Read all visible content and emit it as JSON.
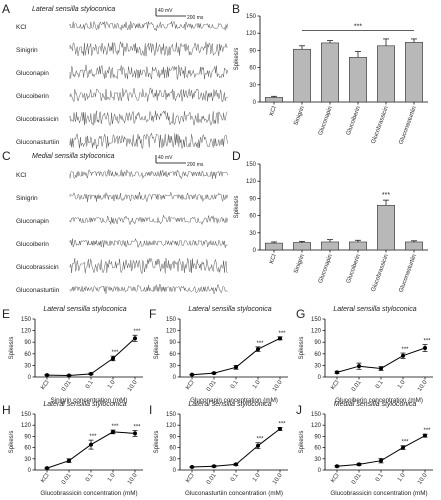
{
  "figure": {
    "panel_labels": {
      "A": "A",
      "B": "B",
      "C": "C",
      "D": "D",
      "E": "E",
      "F": "F",
      "G": "G",
      "H": "H",
      "I": "I",
      "J": "J"
    }
  },
  "chart_data": [
    {
      "id": "A",
      "type": "trace",
      "title": "Lateral sensilla styloconica",
      "scale_bar": {
        "voltage": "40 mV",
        "time": "200 ms"
      },
      "traces": [
        {
          "label": "KCl",
          "activity": 0.15
        },
        {
          "label": "Sinigrin",
          "activity": 0.7
        },
        {
          "label": "Gluconapin",
          "activity": 0.75
        },
        {
          "label": "Glucoiberin",
          "activity": 0.65
        },
        {
          "label": "Glucobrassicin",
          "activity": 0.75
        },
        {
          "label": "Gluconasturtiin",
          "activity": 0.85
        }
      ]
    },
    {
      "id": "B",
      "type": "bar",
      "ylabel": "Spikes/s",
      "ylim": [
        0,
        150
      ],
      "yticks": [
        0,
        30,
        60,
        90,
        120,
        150
      ],
      "categories": [
        "KCl",
        "Sinigrin",
        "Gluconapin",
        "Glucoiberin",
        "Glucobrassicin",
        "Gluconasturtiin"
      ],
      "values": [
        8,
        92,
        103,
        78,
        98,
        104
      ],
      "errors": [
        2,
        6,
        4,
        10,
        12,
        6
      ],
      "annotations": [
        {
          "text": "***"
        }
      ]
    },
    {
      "id": "C",
      "type": "trace",
      "title": "Medial sensilla styloconica",
      "scale_bar": {
        "voltage": "40 mV",
        "time": "200 ms"
      },
      "traces": [
        {
          "label": "KCl",
          "activity": 0.1
        },
        {
          "label": "Sinigrin",
          "activity": 0.1
        },
        {
          "label": "Gluconapin",
          "activity": 0.12
        },
        {
          "label": "Glucoiberin",
          "activity": 0.1
        },
        {
          "label": "Glucobrassicin",
          "activity": 0.85
        },
        {
          "label": "Gluconasturtiin",
          "activity": 0.1
        }
      ]
    },
    {
      "id": "D",
      "type": "bar",
      "ylabel": "Spikes/s",
      "ylim": [
        0,
        150
      ],
      "yticks": [
        0,
        30,
        60,
        90,
        120,
        150
      ],
      "categories": [
        "KCl",
        "Sinigrin",
        "Gluconapin",
        "Glucoiberin",
        "Glucobrassicin",
        "Gluconasturtiin"
      ],
      "values": [
        12,
        13,
        14,
        14,
        78,
        14
      ],
      "errors": [
        2,
        2,
        4,
        3,
        9,
        2
      ],
      "annotations": [
        {
          "text": "***",
          "category": "Glucobrassicin"
        }
      ]
    },
    {
      "id": "E",
      "type": "line",
      "title": "Lateral sensilla styloconica",
      "xlabel": "Sinigrin concentration (mM)",
      "ylabel": "Spikes/s",
      "categories": [
        "KCl",
        "0.01",
        "0.1",
        "1.0",
        "10.0"
      ],
      "values": [
        5,
        4,
        8,
        48,
        100
      ],
      "errors": [
        1,
        1,
        2,
        6,
        8
      ],
      "significance": [
        "",
        "",
        "",
        "***",
        "***"
      ],
      "ylim": [
        0,
        150
      ],
      "yticks": [
        0,
        30,
        60,
        90,
        120,
        150
      ]
    },
    {
      "id": "F",
      "type": "line",
      "title": "Lateral sensilla styloconica",
      "xlabel": "Gluconapin concentration (mM)",
      "ylabel": "Spikes/s",
      "categories": [
        "KCl",
        "0.01",
        "0.1",
        "1.0",
        "10.0"
      ],
      "values": [
        6,
        10,
        25,
        72,
        100
      ],
      "errors": [
        1,
        2,
        5,
        6,
        4
      ],
      "significance": [
        "",
        "",
        "",
        "***",
        "***"
      ],
      "ylim": [
        0,
        150
      ],
      "yticks": [
        0,
        30,
        60,
        90,
        120,
        150
      ]
    },
    {
      "id": "G",
      "type": "line",
      "title": "Lateral sensilla styloconica",
      "xlabel": "Glucoiberin concentration (mM)",
      "ylabel": "Spikes/s",
      "categories": [
        "KCl",
        "0.01",
        "0.1",
        "1.0",
        "10.0"
      ],
      "values": [
        12,
        28,
        22,
        55,
        75
      ],
      "errors": [
        3,
        8,
        5,
        7,
        9
      ],
      "significance": [
        "",
        "",
        "",
        "***",
        "***"
      ],
      "ylim": [
        0,
        150
      ],
      "yticks": [
        0,
        30,
        60,
        90,
        120,
        150
      ]
    },
    {
      "id": "H",
      "type": "line",
      "title": "Lateral sensilla styloconica",
      "xlabel": "Glucobrassicin concentration (mM)",
      "ylabel": "Spikes/s",
      "categories": [
        "KCl",
        "0.01",
        "0.1",
        "1.0",
        "10.0"
      ],
      "values": [
        5,
        25,
        68,
        102,
        98
      ],
      "errors": [
        1,
        5,
        12,
        5,
        8
      ],
      "significance": [
        "",
        "",
        "***",
        "***",
        "***"
      ],
      "ylim": [
        0,
        150
      ],
      "yticks": [
        0,
        30,
        60,
        90,
        120,
        150
      ]
    },
    {
      "id": "I",
      "type": "line",
      "title": "Lateral sensilla styloconica",
      "xlabel": "Gluconasturtiin concentration (mM)",
      "ylabel": "Spikes/s",
      "categories": [
        "KCl",
        "0.01",
        "0.1",
        "1.0",
        "10.0"
      ],
      "values": [
        8,
        10,
        15,
        65,
        110
      ],
      "errors": [
        1,
        2,
        3,
        8,
        4
      ],
      "significance": [
        "",
        "",
        "",
        "***",
        "***"
      ],
      "ylim": [
        0,
        150
      ],
      "yticks": [
        0,
        30,
        60,
        90,
        120,
        150
      ]
    },
    {
      "id": "J",
      "type": "line",
      "title": "Medial sensilla styloconica",
      "xlabel": "Glucobrassicin concentration (mM)",
      "ylabel": "Spikes/s",
      "categories": [
        "KCl",
        "0.01",
        "0.1",
        "1.0",
        "10.0"
      ],
      "values": [
        10,
        15,
        25,
        60,
        92
      ],
      "errors": [
        2,
        3,
        6,
        5,
        4
      ],
      "significance": [
        "",
        "",
        "",
        "***",
        "***"
      ],
      "ylim": [
        0,
        150
      ],
      "yticks": [
        0,
        30,
        60,
        90,
        120,
        150
      ]
    }
  ]
}
